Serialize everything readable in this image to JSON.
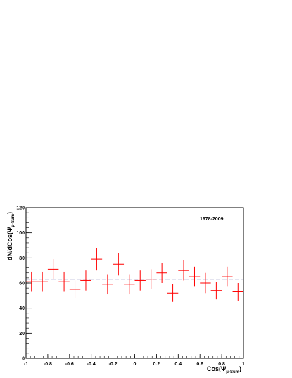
{
  "chart_data": {
    "type": "scatter",
    "annotation": "1978-2009",
    "xlabel_main": "Cos(Ψ",
    "xlabel_sub": "μ-Sum",
    "xlabel_close": ")",
    "ylabel_main": "dN/dCos(Ψ",
    "ylabel_sub": "μ-Sum",
    "ylabel_close": ")",
    "xlim": [
      -1,
      1
    ],
    "ylim": [
      0,
      120
    ],
    "x_ticks": [
      "-1",
      "-0.8",
      "-0.6",
      "-0.4",
      "-0.2",
      "0",
      "0.2",
      "0.4",
      "0.6",
      "0.8",
      "1"
    ],
    "y_ticks": [
      "0",
      "20",
      "40",
      "60",
      "80",
      "100",
      "120"
    ],
    "fit_line": {
      "y": 63,
      "color": "#2a2a8c",
      "style": "dashed"
    },
    "marker_color": "#ff0000",
    "bin_half_width": 0.05,
    "points": [
      {
        "x": -0.95,
        "y": 61,
        "err": 8
      },
      {
        "x": -0.85,
        "y": 61,
        "err": 8
      },
      {
        "x": -0.75,
        "y": 71,
        "err": 8
      },
      {
        "x": -0.65,
        "y": 61,
        "err": 8
      },
      {
        "x": -0.55,
        "y": 55,
        "err": 7
      },
      {
        "x": -0.45,
        "y": 62,
        "err": 8
      },
      {
        "x": -0.35,
        "y": 79,
        "err": 9
      },
      {
        "x": -0.25,
        "y": 59,
        "err": 8
      },
      {
        "x": -0.15,
        "y": 75,
        "err": 9
      },
      {
        "x": -0.05,
        "y": 59,
        "err": 8
      },
      {
        "x": 0.05,
        "y": 62,
        "err": 8
      },
      {
        "x": 0.15,
        "y": 63,
        "err": 8
      },
      {
        "x": 0.25,
        "y": 68,
        "err": 8
      },
      {
        "x": 0.35,
        "y": 52,
        "err": 7
      },
      {
        "x": 0.45,
        "y": 70,
        "err": 8
      },
      {
        "x": 0.55,
        "y": 65,
        "err": 8
      },
      {
        "x": 0.65,
        "y": 60,
        "err": 8
      },
      {
        "x": 0.75,
        "y": 54,
        "err": 7
      },
      {
        "x": 0.85,
        "y": 65,
        "err": 8
      },
      {
        "x": 0.95,
        "y": 53,
        "err": 7
      }
    ]
  }
}
